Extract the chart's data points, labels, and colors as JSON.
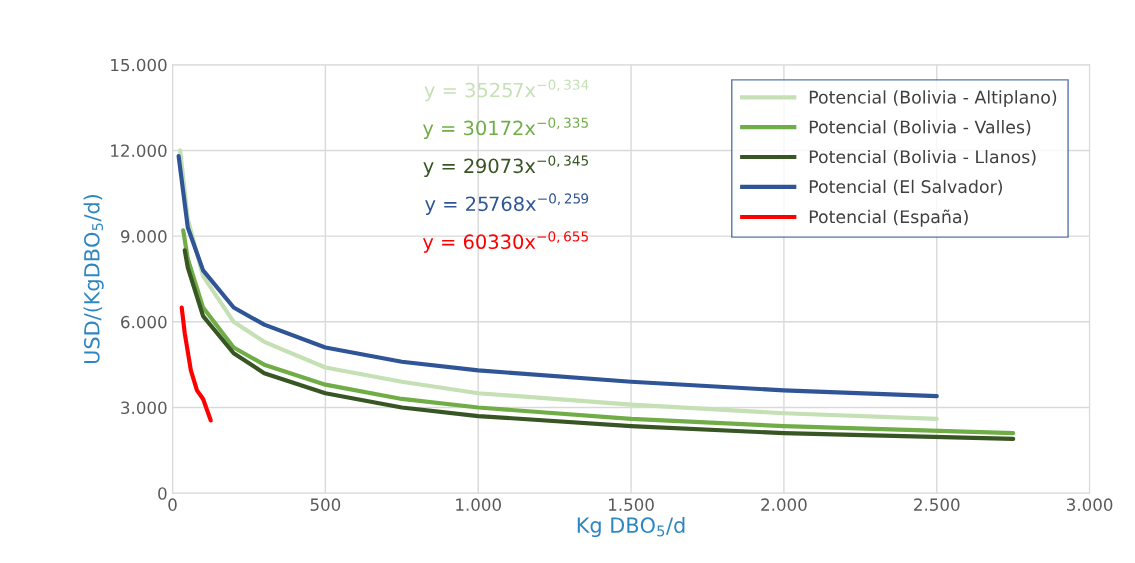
{
  "chart_data": {
    "type": "line",
    "xlabel": "Kg DBO$_{5}$/d",
    "ylabel": "USD/(KgDBO$_{5}$/d)",
    "xlim": [
      0,
      3000
    ],
    "ylim": [
      0,
      15000
    ],
    "xticks": [
      0,
      500,
      {
        "value": 1000,
        "label": "1.000"
      },
      {
        "value": 1500,
        "label": "1.500"
      },
      {
        "value": 2000,
        "label": "2.000"
      },
      {
        "value": 2500,
        "label": "2.500"
      },
      {
        "value": 3000,
        "label": "3.000"
      }
    ],
    "yticks": [
      0,
      {
        "value": 3000,
        "label": "3.000"
      },
      {
        "value": 6000,
        "label": "6.000"
      },
      {
        "value": 9000,
        "label": "9.000"
      },
      {
        "value": 12000,
        "label": "12.000"
      },
      {
        "value": 15000,
        "label": "15.000"
      }
    ],
    "grid": true,
    "legend": "top right",
    "marker": "none",
    "line_style": "solid",
    "series": [
      {
        "name": "Potencial (Bolivia - Altiplano)",
        "color": "#c5e0b4",
        "x": [
          25,
          50,
          100,
          200,
          300,
          500,
          750,
          1000,
          1500,
          2000,
          2500
        ],
        "values": [
          12000,
          9600,
          7600,
          6000,
          5300,
          4400,
          3900,
          3500,
          3100,
          2800,
          2600
        ]
      },
      {
        "name": "Potencial (Bolivia - Valles)",
        "color": "#70ad47",
        "x": [
          35,
          50,
          100,
          200,
          300,
          500,
          750,
          1000,
          1500,
          2000,
          2750
        ],
        "values": [
          9200,
          8200,
          6500,
          5100,
          4500,
          3800,
          3300,
          3000,
          2600,
          2350,
          2100
        ]
      },
      {
        "name": "Potencial (Bolivia - Llanos)",
        "color": "#375623",
        "x": [
          40,
          50,
          100,
          200,
          300,
          500,
          750,
          1000,
          1500,
          2000,
          2750
        ],
        "values": [
          8500,
          7900,
          6200,
          4900,
          4200,
          3500,
          3000,
          2700,
          2350,
          2100,
          1900
        ]
      },
      {
        "name": "Potencial (El Salvador)",
        "color": "#2f5597",
        "x": [
          20,
          50,
          100,
          200,
          300,
          500,
          750,
          1000,
          1500,
          2000,
          2500
        ],
        "values": [
          11800,
          9300,
          7800,
          6500,
          5900,
          5100,
          4600,
          4300,
          3900,
          3600,
          3400
        ]
      },
      {
        "name": "Potencial (España)",
        "color": "#ff0000",
        "x": [
          30,
          40,
          60,
          80,
          100,
          125
        ],
        "values": [
          6500,
          5600,
          4300,
          3600,
          3300,
          2550
        ]
      }
    ],
    "annotations": [
      "y = 35257x$^{−0,334}$",
      "y = 30172x$^{−0,335}$",
      "y = 29073x$^{−0,345}$",
      "y = 25768x$^{−0,259}$",
      "y = 60330x$^{−0,655}$"
    ]
  }
}
